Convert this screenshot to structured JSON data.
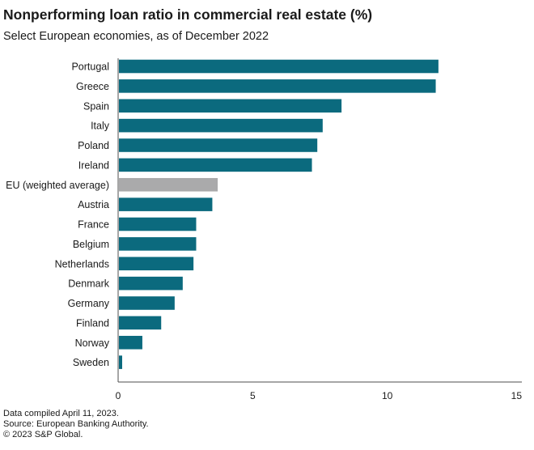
{
  "chart_data": {
    "type": "bar",
    "orientation": "horizontal",
    "title": "Nonperforming loan ratio in commercial real estate (%)",
    "subtitle": "Select European economies, as of December 2022",
    "categories": [
      "Portugal",
      "Greece",
      "Spain",
      "Italy",
      "Poland",
      "Ireland",
      "EU (weighted average)",
      "Austria",
      "France",
      "Belgium",
      "Netherlands",
      "Denmark",
      "Germany",
      "Finland",
      "Norway",
      "Sweden"
    ],
    "values": [
      11.9,
      11.8,
      8.3,
      7.6,
      7.4,
      7.2,
      3.7,
      3.5,
      2.9,
      2.9,
      2.8,
      2.4,
      2.1,
      1.6,
      0.9,
      0.15
    ],
    "highlight_category": "EU (weighted average)",
    "xlim": [
      0,
      15
    ],
    "xticks": [
      0,
      5,
      10,
      15
    ],
    "xlabel": "",
    "ylabel": "",
    "grid": false,
    "colors": {
      "bar": "#0b6a7e",
      "highlight": "#aaaaab",
      "axis": "#4d4d4d"
    }
  },
  "footer": {
    "line1": "Data compiled April 11, 2023.",
    "line2": "Source: European Banking Authority.",
    "line3": "© 2023 S&P Global."
  }
}
